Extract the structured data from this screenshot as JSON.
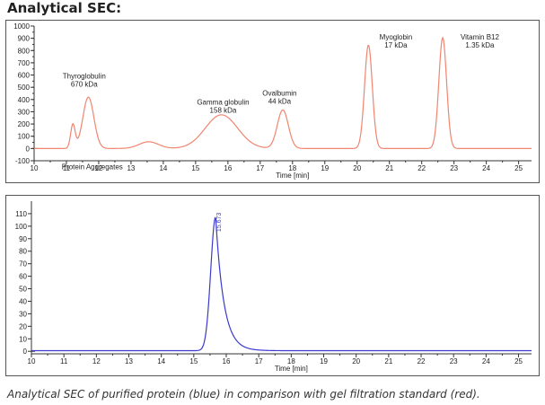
{
  "page": {
    "heading": "Analytical SEC:",
    "caption": "Analytical SEC of purified protein (blue) in comparison with gel filtration standard (red)."
  },
  "colors": {
    "standard": "#f08570",
    "sample": "#3a3acc",
    "axis": "#333333",
    "text": "#222222"
  },
  "chart_data": [
    {
      "type": "line",
      "title": "",
      "xlabel": "Time [min]",
      "ylabel": "",
      "xlim": [
        10,
        25.4
      ],
      "ylim": [
        -100,
        1000
      ],
      "x_ticks": [
        10,
        11,
        12,
        13,
        14,
        15,
        16,
        17,
        18,
        19,
        20,
        21,
        22,
        23,
        24,
        25
      ],
      "y_ticks": [
        -100,
        0,
        100,
        200,
        300,
        400,
        500,
        600,
        700,
        800,
        900,
        1000
      ],
      "y_ticks_minor": [
        0,
        50,
        100,
        150,
        200,
        250,
        300,
        350,
        400,
        450,
        500,
        550,
        600,
        650,
        700,
        750,
        800,
        850,
        900,
        950,
        1000
      ],
      "grid": false,
      "series": [
        {
          "color": "#f08570",
          "baseline": 0,
          "peaks": [
            {
              "x": 11.2,
              "y": 195,
              "sigma": 0.07
            },
            {
              "x": 11.68,
              "y": 420,
              "sigma": 0.17
            },
            {
              "x": 13.55,
              "y": 55,
              "sigma": 0.3
            },
            {
              "x": 15.8,
              "y": 275,
              "sigma": 0.5
            },
            {
              "x": 17.7,
              "y": 315,
              "sigma": 0.17
            },
            {
              "x": 20.35,
              "y": 845,
              "sigma": 0.12
            },
            {
              "x": 22.65,
              "y": 905,
              "sigma": 0.12
            }
          ]
        }
      ],
      "annotations": [
        {
          "lines": [
            "Thyroglobulin",
            "670 kDa"
          ],
          "x": 11.55,
          "y": 570
        },
        {
          "lines": [
            "Protein Aggregates"
          ],
          "x": 11.8,
          "y": -170
        },
        {
          "lines": [
            "Gamma globulin",
            "158 kDa"
          ],
          "x": 15.85,
          "y": 360
        },
        {
          "lines": [
            "Ovalbumin",
            "44 kDa"
          ],
          "x": 17.6,
          "y": 430
        },
        {
          "lines": [
            "Myoglobin",
            "17 kDa"
          ],
          "x": 21.2,
          "y": 890
        },
        {
          "lines": [
            "Vitamin B12",
            "1.35 kDa"
          ],
          "x": 23.8,
          "y": 890
        }
      ]
    },
    {
      "type": "line",
      "title": "",
      "xlabel": "Time [min]",
      "ylabel": "",
      "xlim": [
        10,
        25.4
      ],
      "ylim": [
        -2,
        120
      ],
      "x_ticks": [
        10,
        11,
        12,
        13,
        14,
        15,
        16,
        17,
        18,
        19,
        20,
        21,
        22,
        23,
        24,
        25
      ],
      "y_ticks": [
        0,
        10,
        20,
        30,
        40,
        50,
        60,
        70,
        80,
        90,
        100,
        110
      ],
      "grid": false,
      "series": [
        {
          "color": "#3a3acc",
          "baseline": 0.5,
          "peaks": [
            {
              "x": 15.673,
              "y": 107,
              "sigma_left": 0.15,
              "tau_right": 0.25
            }
          ]
        }
      ],
      "peak_label": {
        "text": "15.673",
        "x": 15.673,
        "y": 107
      }
    }
  ]
}
